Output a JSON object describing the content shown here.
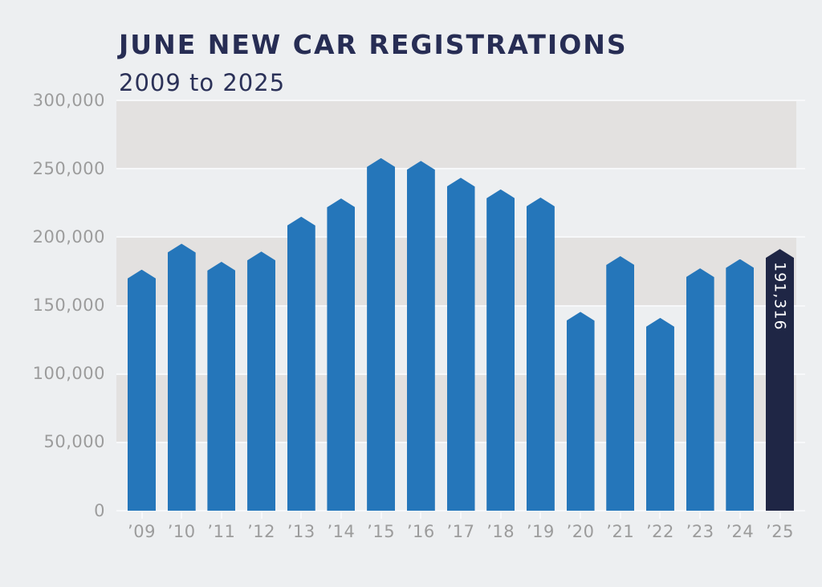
{
  "header": {
    "title": "JUNE NEW CAR REGISTRATIONS",
    "subtitle": "2009 to 2025"
  },
  "chart_data": {
    "type": "bar",
    "title": "JUNE NEW CAR REGISTRATIONS",
    "subtitle": "2009 to 2025",
    "categories": [
      "’09",
      "’10",
      "’11",
      "’12",
      "’13",
      "’14",
      "’15",
      "’16",
      "’17",
      "’18",
      "’19",
      "’20",
      "’21",
      "’22",
      "’23",
      "’24",
      "’25"
    ],
    "values": [
      176264,
      195226,
      182000,
      189514,
      214957,
      228291,
      257817,
      255766,
      243454,
      234945,
      229000,
      145377,
      186128,
      140958,
      177266,
      184000,
      191316
    ],
    "highlight_index": 16,
    "highlight_label": "191,316",
    "xlabel": "",
    "ylabel": "",
    "ylim": [
      0,
      300000
    ],
    "ytick_interval": 50000,
    "ytick_labels": [
      "0",
      "50,000",
      "100,000",
      "150,000",
      "200,000",
      "250,000",
      "300,000"
    ],
    "legend": "none",
    "grid": "horizontal white lines with alternating shaded bands",
    "colors": {
      "bar": "#2576BA",
      "highlight_bar": "#1F2645",
      "highlight_label_text": "#FFFFFF",
      "title_text": "#272D54",
      "subtitle_text": "#2B3158",
      "axis_label_text": "#9C9C9C",
      "shaded_band": "#E3E1E0",
      "gridline": "#F7F8FA",
      "background": "#EDEFF1"
    }
  }
}
